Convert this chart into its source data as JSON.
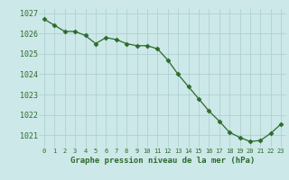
{
  "x": [
    0,
    1,
    2,
    3,
    4,
    5,
    6,
    7,
    8,
    9,
    10,
    11,
    12,
    13,
    14,
    15,
    16,
    17,
    18,
    19,
    20,
    21,
    22,
    23
  ],
  "y": [
    1026.7,
    1026.4,
    1026.1,
    1026.1,
    1025.9,
    1025.5,
    1025.8,
    1025.7,
    1025.5,
    1025.4,
    1025.4,
    1025.25,
    1024.7,
    1024.0,
    1023.4,
    1022.8,
    1022.2,
    1021.7,
    1021.15,
    1020.9,
    1020.7,
    1020.75,
    1021.1,
    1021.55
  ],
  "line_color": "#2d6a2d",
  "marker": "D",
  "marker_size": 2.5,
  "bg_color": "#cce8e8",
  "grid_color": "#aacece",
  "xlabel": "Graphe pression niveau de la mer (hPa)",
  "xlabel_color": "#2d6a2d",
  "tick_color": "#2d6a2d",
  "ylim": [
    1020.4,
    1027.2
  ],
  "xlim": [
    -0.5,
    23.5
  ],
  "yticks": [
    1021,
    1022,
    1023,
    1024,
    1025,
    1026,
    1027
  ],
  "xticks": [
    0,
    1,
    2,
    3,
    4,
    5,
    6,
    7,
    8,
    9,
    10,
    11,
    12,
    13,
    14,
    15,
    16,
    17,
    18,
    19,
    20,
    21,
    22,
    23
  ],
  "xtick_labels": [
    "0",
    "1",
    "2",
    "3",
    "4",
    "5",
    "6",
    "7",
    "8",
    "9",
    "10",
    "11",
    "12",
    "13",
    "14",
    "15",
    "16",
    "17",
    "18",
    "19",
    "20",
    "21",
    "22",
    "23"
  ]
}
